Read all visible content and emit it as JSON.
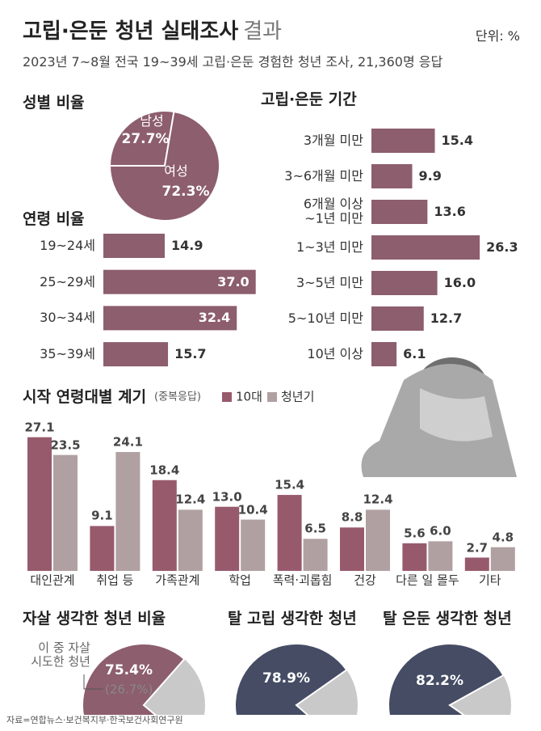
{
  "header": {
    "title": "고립·은둔 청년 실태조사",
    "title_suffix": "결과",
    "unit": "단위: %",
    "subtitle": "2023년 7~8월 전국 19~39세 고립·은둔 경험한 청년 조사, 21,360명 응답"
  },
  "chart_data": [
    {
      "type": "pie",
      "title": "성별 비율",
      "categories": [
        "남성",
        "여성"
      ],
      "values": [
        27.7,
        72.3
      ],
      "value_labels": [
        "27.7%",
        "72.3%"
      ],
      "color": "#8d5e6d"
    },
    {
      "type": "hbar",
      "title": "연령 비율",
      "categories": [
        "19~24세",
        "25~29세",
        "30~34세",
        "35~39세"
      ],
      "values": [
        14.9,
        37.0,
        32.4,
        15.7
      ],
      "value_labels": [
        "14.9",
        "37.0",
        "32.4",
        "15.7"
      ],
      "color": "#8d5e6d"
    },
    {
      "type": "hbar",
      "title": "고립·은둔 기간",
      "categories": [
        "3개월 미만",
        "3~6개월 미만",
        "6개월 이상\n~1년 미만",
        "1~3년 미만",
        "3~5년 미만",
        "5~10년 미만",
        "10년 이상"
      ],
      "values": [
        15.4,
        9.9,
        13.6,
        26.3,
        16.0,
        12.7,
        6.1
      ],
      "value_labels": [
        "15.4",
        "9.9",
        "13.6",
        "26.3",
        "16.0",
        "12.7",
        "6.1"
      ],
      "color": "#8d5e6d"
    },
    {
      "type": "bar",
      "title": "시작 연령대별 계기",
      "subtitle": "(중복응답)",
      "categories": [
        "대인관계",
        "취업 등",
        "가족관계",
        "학업",
        "폭력·괴롭힘",
        "건강",
        "다른 일 몰두",
        "기타"
      ],
      "series": [
        {
          "name": "10대",
          "color": "#975a6c",
          "values": [
            27.1,
            9.1,
            18.4,
            13.0,
            15.4,
            8.8,
            5.6,
            2.7
          ],
          "value_labels": [
            "27.1",
            "9.1",
            "18.4",
            "13.0",
            "15.4",
            "8.8",
            "5.6",
            "2.7"
          ]
        },
        {
          "name": "청년기",
          "color": "#b0a0a1",
          "values": [
            23.5,
            24.1,
            12.4,
            10.4,
            6.5,
            12.4,
            6.0,
            4.8
          ],
          "value_labels": [
            "23.5",
            "24.1",
            "12.4",
            "10.4",
            "6.5",
            "12.4",
            "6.0",
            "4.8"
          ]
        }
      ]
    },
    {
      "type": "pie",
      "title": "자살 생각한 청년 비율",
      "values": [
        75.4
      ],
      "value_labels": [
        "75.4%"
      ],
      "color": "#8d5e6d",
      "annotation": "이 중 자살\n시도한 청년",
      "sub_value": 26.7,
      "sub_value_label": "(26.7%)"
    },
    {
      "type": "pie",
      "title": "탈 고립 생각한 청년",
      "values": [
        78.9
      ],
      "value_labels": [
        "78.9%"
      ],
      "color": "#454c64"
    },
    {
      "type": "pie",
      "title": "탈 은둔 생각한 청년",
      "values": [
        82.2
      ],
      "value_labels": [
        "82.2%"
      ],
      "color": "#454c64"
    }
  ],
  "source": "자료=연합뉴스·보건복지부·한국보건사회연구원"
}
